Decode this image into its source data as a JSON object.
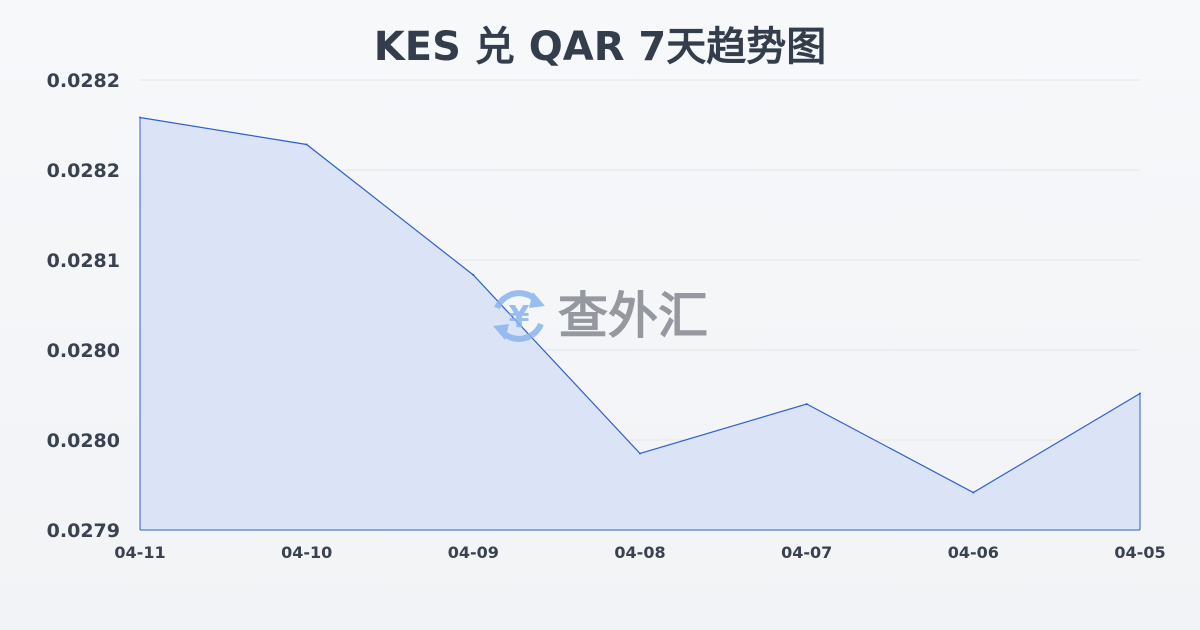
{
  "chart_data": {
    "type": "area",
    "title": "KES 兑 QAR 7天趋势图",
    "xlabel": "",
    "ylabel": "",
    "categories": [
      "04-11",
      "04-10",
      "04-09",
      "04-08",
      "04-07",
      "04-06",
      "04-05"
    ],
    "series": [
      {
        "values": [
          0.028195,
          0.028177,
          0.02809,
          0.027971,
          0.028004,
          0.027945,
          0.028011
        ]
      }
    ],
    "ylim": [
      0.02792,
      0.02822
    ],
    "yticks": [
      0.02792,
      0.02798,
      0.02804,
      0.0281,
      0.02816,
      0.02822
    ],
    "ytick_labels": [
      "0.0279",
      "0.0280",
      "0.0280",
      "0.0281",
      "0.0282",
      "0.0282"
    ],
    "grid": true,
    "colors": {
      "line": "#2f5fd0",
      "fill": "#d6e1f6",
      "grid": "#e3e6ea"
    }
  },
  "watermark": {
    "text": "查外汇",
    "icon": "yen-exchange-icon"
  }
}
